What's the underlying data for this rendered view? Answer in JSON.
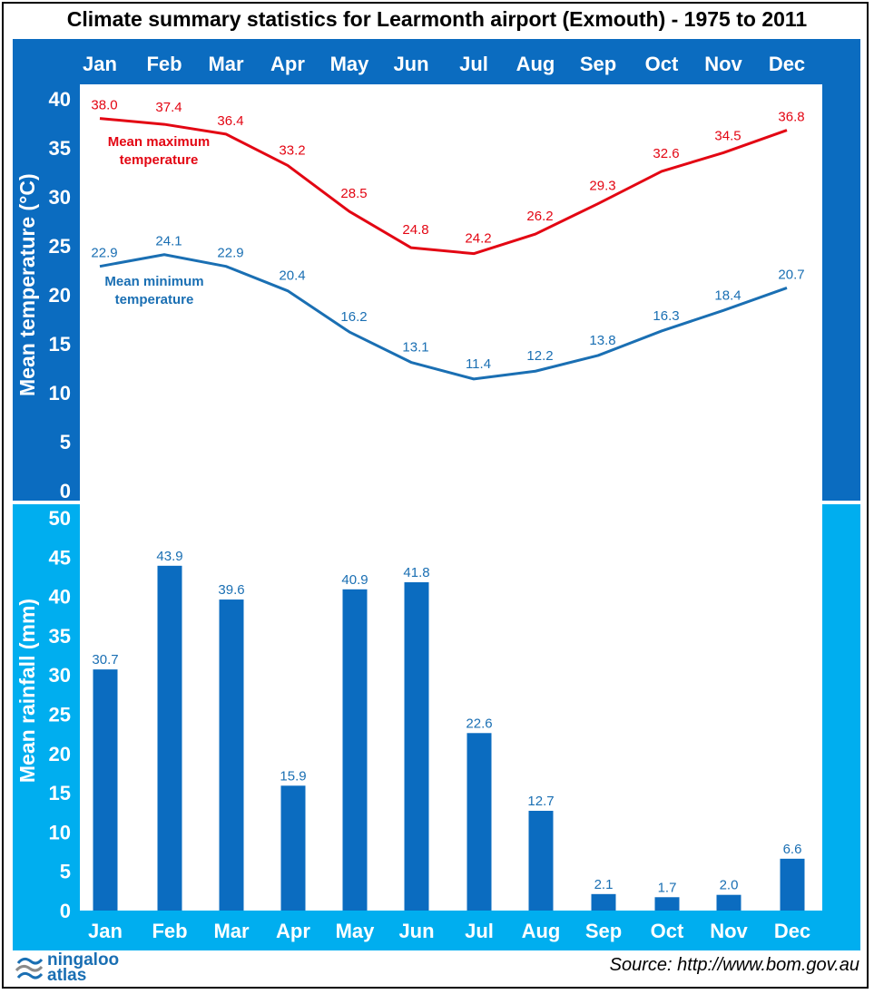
{
  "title": "Climate summary statistics for Learmonth airport (Exmouth) - 1975 to 2011",
  "source": "Source: http://www.bom.gov.au",
  "logo": {
    "line1": "ningaloo",
    "line2": "atlas"
  },
  "colors": {
    "top_band": "#0b6cc0",
    "bottom_band": "#00aeef",
    "tmax": "#e30613",
    "tmin": "#1a6fb3",
    "bars": "#0b6cc0",
    "bar_labels": "#1a6fb3"
  },
  "chart_data": [
    {
      "type": "line",
      "categories": [
        "Jan",
        "Feb",
        "Mar",
        "Apr",
        "May",
        "Jun",
        "Jul",
        "Aug",
        "Sep",
        "Oct",
        "Nov",
        "Dec"
      ],
      "ylabel": "Mean temperature (°C)",
      "ylim": [
        0,
        40
      ],
      "yticks": [
        0,
        5,
        10,
        15,
        20,
        25,
        30,
        35,
        40
      ],
      "grid": false,
      "series": [
        {
          "name": "Mean maximum temperature",
          "label_lines": [
            "Mean maximum",
            "temperature"
          ],
          "values": [
            38.0,
            37.4,
            36.4,
            33.2,
            28.5,
            24.8,
            24.2,
            26.2,
            29.3,
            32.6,
            34.5,
            36.8
          ]
        },
        {
          "name": "Mean minimum temperature",
          "label_lines": [
            "Mean minimum",
            "temperature"
          ],
          "values": [
            22.9,
            24.1,
            22.9,
            20.4,
            16.2,
            13.1,
            11.4,
            12.2,
            13.8,
            16.3,
            18.4,
            20.7
          ]
        }
      ]
    },
    {
      "type": "bar",
      "categories": [
        "Jan",
        "Feb",
        "Mar",
        "Apr",
        "May",
        "Jun",
        "Jul",
        "Aug",
        "Sep",
        "Oct",
        "Nov",
        "Dec"
      ],
      "ylabel": "Mean rainfall (mm)",
      "ylim": [
        0,
        50
      ],
      "yticks": [
        0,
        5,
        10,
        15,
        20,
        25,
        30,
        35,
        40,
        45,
        50
      ],
      "grid": false,
      "values": [
        30.7,
        43.9,
        39.6,
        15.9,
        40.9,
        41.8,
        22.6,
        12.7,
        2.1,
        1.7,
        2.0,
        6.6
      ]
    }
  ]
}
